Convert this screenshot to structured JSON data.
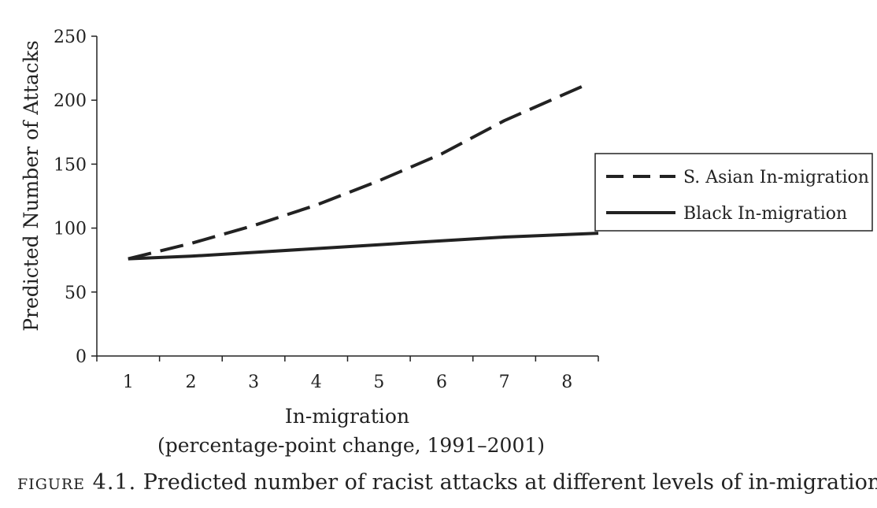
{
  "chart_data": {
    "type": "line",
    "x": [
      1,
      2,
      3,
      4,
      5,
      6,
      7,
      8
    ],
    "xlabel": "In-migration",
    "xlabel_sub": "(percentage-point change, 1991–2001)",
    "ylabel": "Predicted Number of Attacks",
    "ylim": [
      0,
      250
    ],
    "yticks": [
      0,
      50,
      100,
      150,
      200,
      250
    ],
    "xticks": [
      1,
      2,
      3,
      4,
      5,
      6,
      7,
      8
    ],
    "series": [
      {
        "name": "S. Asian In-migration",
        "style": "dashed",
        "values": [
          76,
          88,
          102,
          118,
          137,
          158,
          184,
          212
        ]
      },
      {
        "name": "Black In-migration",
        "style": "solid",
        "values": [
          76,
          78,
          81,
          84,
          87,
          90,
          93,
          96
        ]
      }
    ],
    "legend": "right",
    "grid": false
  },
  "caption": {
    "figure_label": "figure 4.1.",
    "text": "Predicted number of racist attacks at different levels of in-migration."
  }
}
